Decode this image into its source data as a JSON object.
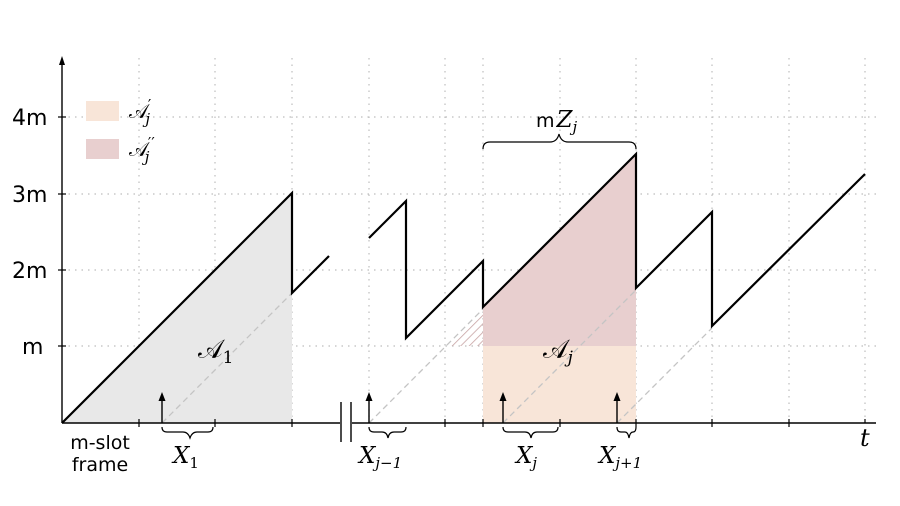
{
  "legend": [
    {
      "symbol": "𝒜",
      "prime": "′",
      "sub": "j",
      "color": "#f8e5d8"
    },
    {
      "symbol": "𝒜",
      "prime": "′′",
      "sub": "j",
      "color": "#e8cfcf"
    }
  ],
  "y_ticks": [
    "m",
    "2m",
    "3m",
    "4m"
  ],
  "x_axis_label": "t",
  "frame_label": [
    "m-slot",
    "frame"
  ],
  "area_labels": {
    "a1": {
      "symbol": "𝒜",
      "sub": "1"
    },
    "aj": {
      "symbol": "𝒜",
      "sub": "j"
    }
  },
  "brace_top": {
    "prefix": "m",
    "var": "Z",
    "sub": "j"
  },
  "x_labels": [
    {
      "var": "X",
      "sub": "1"
    },
    {
      "var": "X",
      "sub": "j−1"
    },
    {
      "var": "X",
      "sub": "j"
    },
    {
      "var": "X",
      "sub": "j+1"
    }
  ],
  "colors": {
    "gray_fill": "#e8e8e8",
    "light_fill": "#f8e5d8",
    "dark_fill": "#e8cfcf",
    "grid": "#bdbdbd",
    "dashed": "#c4c4c4",
    "hatch": "#c9a6a6"
  }
}
